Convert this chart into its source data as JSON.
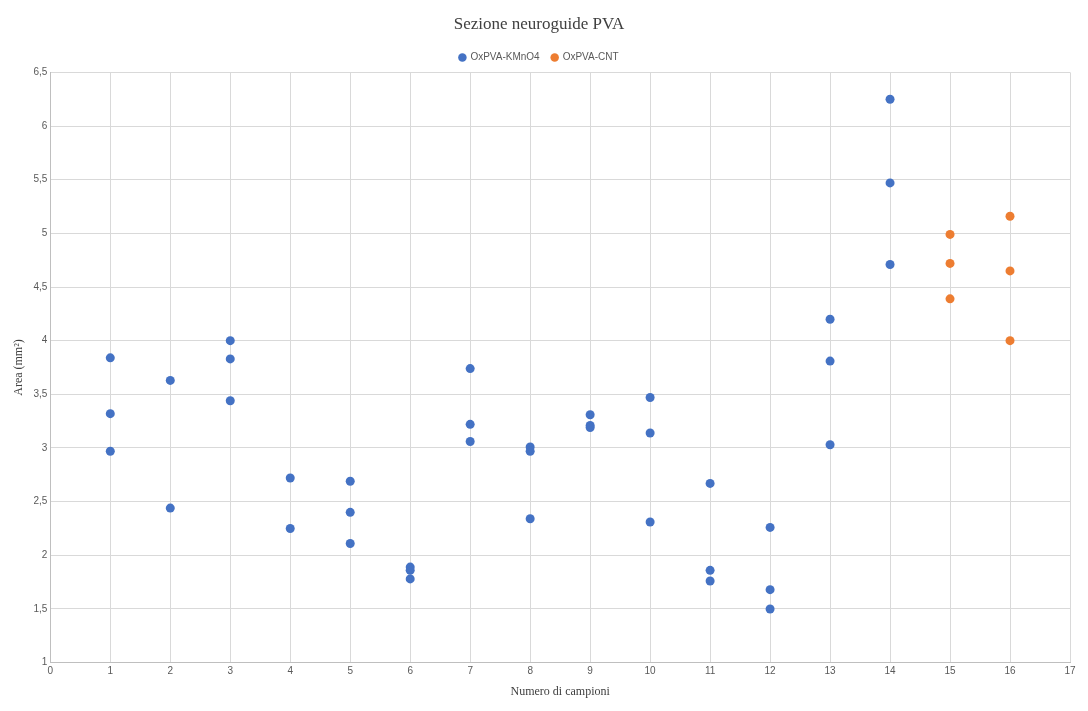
{
  "chart_data": {
    "type": "scatter",
    "title": "Sezione neuroguide PVA",
    "xlabel": "Numero di campioni",
    "ylabel": "Area (mm²)",
    "series": [
      {
        "name": "OxPVA-KMnO4",
        "color": "#4472c4",
        "x": [
          1,
          1,
          1,
          2,
          2,
          3,
          3,
          3,
          4,
          4,
          5,
          5,
          5,
          6,
          6,
          6,
          7,
          7,
          7,
          8,
          8,
          8,
          9,
          9,
          9,
          10,
          10,
          10,
          11,
          11,
          11,
          12,
          12,
          12,
          13,
          13,
          13,
          14,
          14,
          14
        ],
        "values": [
          3.84,
          3.32,
          2.97,
          3.63,
          2.44,
          4.0,
          3.83,
          3.44,
          2.72,
          2.25,
          2.69,
          2.4,
          2.11,
          1.89,
          1.86,
          1.78,
          3.74,
          3.22,
          3.06,
          3.01,
          2.97,
          2.34,
          3.31,
          3.21,
          3.19,
          3.47,
          3.14,
          2.31,
          2.67,
          1.86,
          1.76,
          2.26,
          1.68,
          1.5,
          4.2,
          3.81,
          3.03,
          6.25,
          5.47,
          4.71
        ]
      },
      {
        "name": "OxPVA-CNT",
        "color": "#ed7d31",
        "x": [
          15,
          15,
          15,
          16,
          16,
          16
        ],
        "values": [
          4.99,
          4.72,
          4.39,
          5.16,
          4.65,
          4.0
        ]
      }
    ],
    "xlim": [
      0,
      17
    ],
    "xticks": [
      0,
      1,
      2,
      3,
      4,
      5,
      6,
      7,
      8,
      9,
      10,
      11,
      12,
      13,
      14,
      15,
      16,
      17
    ],
    "ylim": [
      1,
      6.5
    ],
    "yticks": [
      {
        "value": 1,
        "label": "1"
      },
      {
        "value": 1.5,
        "label": "1,5"
      },
      {
        "value": 2,
        "label": "2"
      },
      {
        "value": 2.5,
        "label": "2,5"
      },
      {
        "value": 3,
        "label": "3"
      },
      {
        "value": 3.5,
        "label": "3,5"
      },
      {
        "value": 4,
        "label": "4"
      },
      {
        "value": 4.5,
        "label": "4,5"
      },
      {
        "value": 5,
        "label": "5"
      },
      {
        "value": 5.5,
        "label": "5,5"
      },
      {
        "value": 6,
        "label": "6"
      },
      {
        "value": 6.5,
        "label": "6,5"
      }
    ],
    "grid": true,
    "legend": "top",
    "marker": "circle"
  }
}
